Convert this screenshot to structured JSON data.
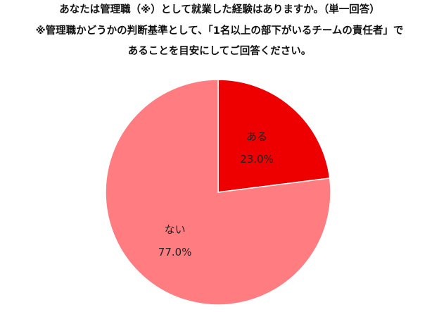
{
  "chart_data": {
    "type": "pie",
    "title": "あなたは管理職（※）として就業した経験はありますか。（単一回答）",
    "subtitle": [
      "※管理職かどうかの判断基準として、「1名以上の部下がいるチームの責任者」で",
      "あることを目安にしてご回答ください。"
    ],
    "categories": [
      "ある",
      "ない"
    ],
    "values": [
      23,
      77
    ],
    "value_labels": [
      "23.0%",
      "77.0%"
    ],
    "colors": [
      "#ee0000",
      "#ff7c80"
    ]
  }
}
